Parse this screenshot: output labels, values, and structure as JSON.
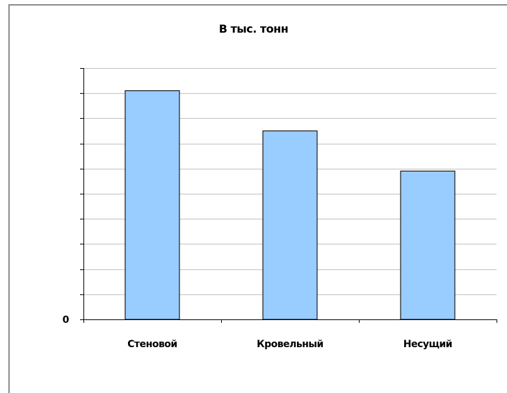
{
  "chart_data": {
    "type": "bar",
    "title": "В тыс. тонн",
    "xlabel": "",
    "ylabel": "",
    "categories": [
      "Стеновой",
      "Кровельный",
      "Несущий"
    ],
    "values": [
      9.1,
      7.5,
      5.9
    ],
    "ylim": [
      0,
      10
    ],
    "y_tick_labels": [
      "0"
    ],
    "grid": true,
    "bar_color": "#99ccff",
    "bar_border_color": "#1a1a1a",
    "grid_color": "#c0c0c0"
  }
}
